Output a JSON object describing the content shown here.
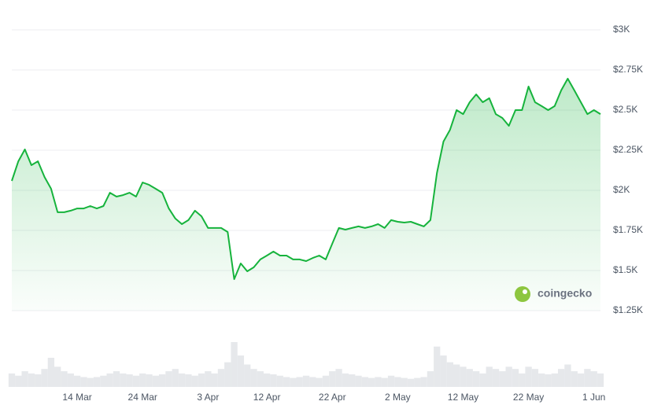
{
  "chart_data": {
    "type": "line",
    "categories": [
      null,
      null,
      null,
      null,
      null,
      null,
      null,
      null,
      null,
      null,
      "14 Mar",
      null,
      null,
      null,
      null,
      null,
      null,
      null,
      null,
      null,
      "24 Mar",
      null,
      null,
      null,
      null,
      null,
      null,
      null,
      null,
      null,
      "3 Apr",
      null,
      null,
      null,
      null,
      null,
      null,
      null,
      null,
      "12 Apr",
      null,
      null,
      null,
      null,
      null,
      null,
      null,
      null,
      null,
      "22 Apr",
      null,
      null,
      null,
      null,
      null,
      null,
      null,
      null,
      null,
      "2 May",
      null,
      null,
      null,
      null,
      null,
      null,
      null,
      null,
      null,
      "12 May",
      null,
      null,
      null,
      null,
      null,
      null,
      null,
      null,
      null,
      "22 May",
      null,
      null,
      null,
      null,
      null,
      null,
      null,
      null,
      null,
      "1 Jun",
      null
    ],
    "values": [
      2059,
      2181,
      2255,
      2157,
      2181,
      2083,
      2010,
      1863,
      1863,
      1873,
      1887,
      1887,
      1902,
      1887,
      1902,
      1985,
      1961,
      1970,
      1985,
      1961,
      2049,
      2034,
      2010,
      1985,
      1887,
      1824,
      1789,
      1814,
      1873,
      1838,
      1765,
      1765,
      1765,
      1740,
      1446,
      1544,
      1495,
      1520,
      1569,
      1593,
      1618,
      1593,
      1593,
      1569,
      1569,
      1559,
      1578,
      1593,
      1569,
      1667,
      1765,
      1755,
      1765,
      1775,
      1765,
      1775,
      1789,
      1765,
      1814,
      1804,
      1799,
      1804,
      1789,
      1775,
      1814,
      2108,
      2304,
      2377,
      2500,
      2475,
      2549,
      2598,
      2549,
      2574,
      2475,
      2451,
      2402,
      2500,
      2500,
      2647,
      2549,
      2525,
      2500,
      2525,
      2623,
      2696,
      2623,
      2549,
      2475,
      2500,
      2475
    ],
    "color": "#16b33c",
    "ylim": [
      1250,
      3000
    ],
    "yticks": [
      {
        "value": 1250,
        "label": "$1.25K"
      },
      {
        "value": 1500,
        "label": "$1.5K"
      },
      {
        "value": 1750,
        "label": "$1.75K"
      },
      {
        "value": 2000,
        "label": "$2K"
      },
      {
        "value": 2250,
        "label": "$2.25K"
      },
      {
        "value": 2500,
        "label": "$2.5K"
      },
      {
        "value": 2750,
        "label": "$2.75K"
      },
      {
        "value": 3000,
        "label": "$3K"
      }
    ],
    "grid": true,
    "volume": {
      "color": "#e6e8eb",
      "values": [
        30,
        25,
        35,
        30,
        28,
        40,
        65,
        45,
        35,
        30,
        25,
        22,
        20,
        22,
        25,
        30,
        35,
        30,
        28,
        25,
        30,
        28,
        25,
        28,
        35,
        40,
        30,
        28,
        25,
        30,
        35,
        30,
        40,
        55,
        100,
        70,
        50,
        40,
        35,
        30,
        28,
        25,
        22,
        20,
        22,
        25,
        22,
        20,
        25,
        35,
        40,
        30,
        28,
        25,
        22,
        20,
        22,
        20,
        25,
        22,
        20,
        18,
        20,
        22,
        35,
        90,
        70,
        55,
        50,
        45,
        40,
        35,
        30,
        45,
        40,
        35,
        45,
        40,
        30,
        45,
        40,
        30,
        28,
        30,
        40,
        50,
        35,
        30,
        40,
        35,
        30
      ]
    },
    "watermark": "coingecko"
  }
}
